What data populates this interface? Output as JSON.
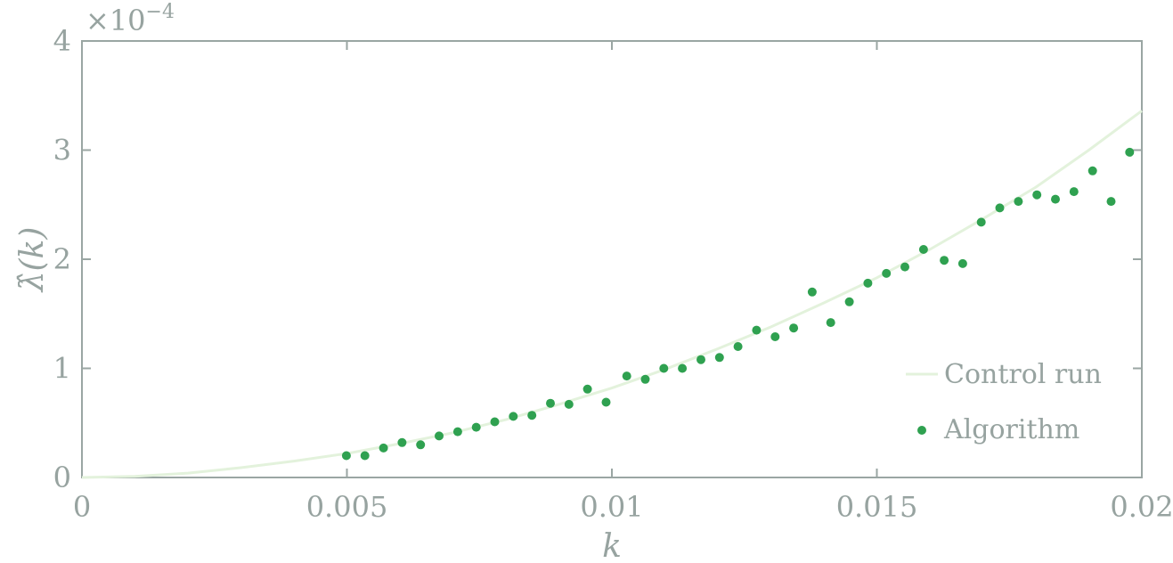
{
  "chart_data": {
    "type": "scatter",
    "x_label": "k",
    "y_label": "λ̂(k)",
    "y_exponent_label": "×10",
    "y_exponent_power": "−4",
    "xlim": [
      0,
      0.02
    ],
    "ylim": [
      0,
      4
    ],
    "x_ticks": [
      {
        "value": 0,
        "label": "0"
      },
      {
        "value": 0.005,
        "label": "0.005"
      },
      {
        "value": 0.01,
        "label": "0.01"
      },
      {
        "value": 0.015,
        "label": "0.015"
      },
      {
        "value": 0.02,
        "label": "0.02"
      }
    ],
    "y_ticks": [
      {
        "value": 0,
        "label": "0"
      },
      {
        "value": 1,
        "label": "1"
      },
      {
        "value": 2,
        "label": "2"
      },
      {
        "value": 3,
        "label": "3"
      },
      {
        "value": 4,
        "label": "4"
      }
    ],
    "grid": false,
    "legend_position": "bottom-right",
    "series": [
      {
        "name": "Control run",
        "kind": "line",
        "color": "#e3f2dc",
        "x": [
          0,
          0.001,
          0.002,
          0.003,
          0.004,
          0.005,
          0.006,
          0.007,
          0.008,
          0.009,
          0.01,
          0.011,
          0.012,
          0.013,
          0.014,
          0.015,
          0.016,
          0.017,
          0.018,
          0.019,
          0.02
        ],
        "y": [
          0,
          0.01,
          0.04,
          0.09,
          0.15,
          0.22,
          0.31,
          0.41,
          0.53,
          0.67,
          0.82,
          0.99,
          1.18,
          1.38,
          1.6,
          1.83,
          2.09,
          2.37,
          2.66,
          3.0,
          3.36
        ]
      },
      {
        "name": "Algorithm",
        "kind": "scatter",
        "color": "#2fa150",
        "x": [
          0.00499,
          0.00534,
          0.00569,
          0.00604,
          0.00639,
          0.00674,
          0.00709,
          0.00744,
          0.00779,
          0.00814,
          0.00849,
          0.00884,
          0.00919,
          0.00954,
          0.00989,
          0.01028,
          0.01063,
          0.01098,
          0.01133,
          0.01168,
          0.01203,
          0.01238,
          0.01273,
          0.01308,
          0.01343,
          0.01378,
          0.01413,
          0.01448,
          0.01483,
          0.01518,
          0.01553,
          0.01588,
          0.01627,
          0.01662,
          0.01697,
          0.01732,
          0.01767,
          0.01802,
          0.01837,
          0.01872,
          0.01907,
          0.01942,
          0.01977
        ],
        "y": [
          0.2,
          0.2,
          0.27,
          0.32,
          0.3,
          0.38,
          0.42,
          0.46,
          0.51,
          0.56,
          0.57,
          0.68,
          0.67,
          0.81,
          0.69,
          0.93,
          0.9,
          1.0,
          1.0,
          1.08,
          1.1,
          1.2,
          1.35,
          1.29,
          1.37,
          1.7,
          1.42,
          1.61,
          1.78,
          1.87,
          1.93,
          2.09,
          1.99,
          1.96,
          2.34,
          2.47,
          2.53,
          2.59,
          2.55,
          2.62,
          2.81,
          2.53,
          2.98
        ]
      }
    ]
  }
}
